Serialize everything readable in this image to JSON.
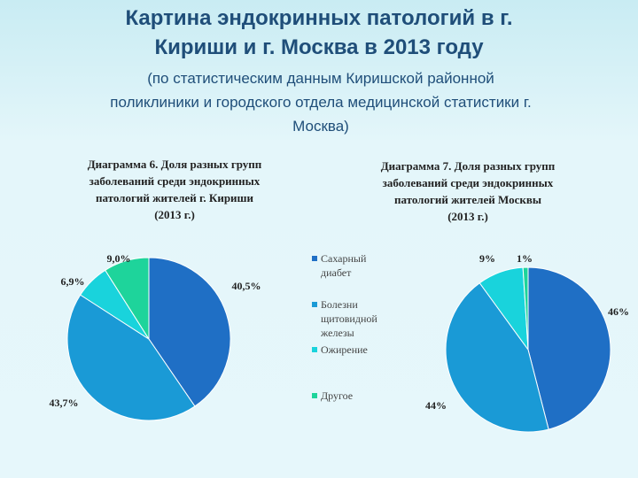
{
  "slide": {
    "title": [
      "Картина эндокринных патологий в г.",
      "Кириши и г. Москва в 2013 году"
    ],
    "subtitle": [
      "(по статистическим данным Киришской районной",
      "поликлиники и городского отдела медицинской статистики г.",
      "Москва)"
    ]
  },
  "chart_data": [
    {
      "type": "pie",
      "title": [
        "Диаграмма 6. Доля разных групп",
        "заболеваний среди эндокринных",
        "патологий жителей г. Кириши",
        "(2013 г.)"
      ],
      "categories": [
        "Сахарный диабет",
        "Болезни щитовидной железы",
        "Ожирение",
        "Другое"
      ],
      "values": [
        40.5,
        43.7,
        6.9,
        9.0
      ],
      "value_labels": [
        "40,5%",
        "43,7%",
        "6,9%",
        "9,0%"
      ],
      "colors": [
        "#1f6fc5",
        "#1a9ad6",
        "#19d3dc",
        "#1ed49b"
      ]
    },
    {
      "type": "pie",
      "title": [
        "Диаграмма 7. Доля разных групп",
        "заболеваний среди эндокринных",
        "патологий жителей  Москвы",
        "(2013 г.)"
      ],
      "categories": [
        "Сахарный диабет",
        "Болезни щитовидной железы",
        "Ожирение",
        "Другое"
      ],
      "values": [
        46,
        44,
        9,
        1
      ],
      "value_labels": [
        "46%",
        "44%",
        "9%",
        "1%"
      ],
      "colors": [
        "#1f6fc5",
        "#1a9ad6",
        "#19d3dc",
        "#1ed49b"
      ]
    }
  ]
}
